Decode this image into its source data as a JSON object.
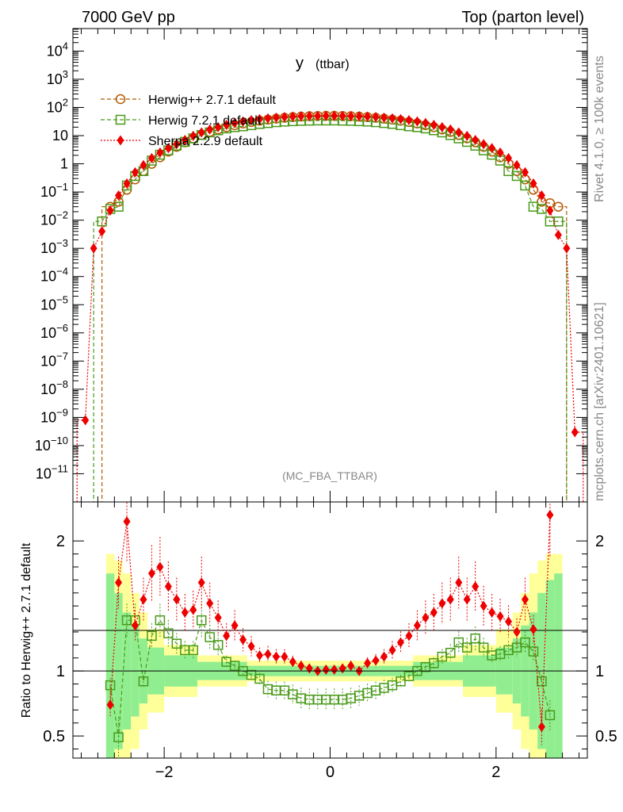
{
  "header": {
    "left": "7000 GeV pp",
    "right": "Top (parton level)"
  },
  "side_text": {
    "rivet": "Rivet 4.1.0, ≥ 100k events",
    "mcplots": "mcplots.cern.ch [arXiv:2401.10621]"
  },
  "colors": {
    "herwigpp": "#b35900",
    "herwig7": "#4a9a1a",
    "sherpa": "#ee0000",
    "band_inner": "#90ee90",
    "band_outer": "#ffff99"
  },
  "chart_data": [
    {
      "type": "line",
      "title_main": "y",
      "title_sub": "(ttbar)",
      "watermark": "(MC_FBA_TTBAR)",
      "yscale": "log",
      "xlim": [
        -3.1,
        3.1
      ],
      "ylim_exp": [
        -12,
        4.8
      ],
      "yticks_exp": [
        -11,
        -10,
        -9,
        -8,
        -7,
        -6,
        -5,
        -4,
        -3,
        -2,
        -1,
        0,
        1,
        2,
        3,
        4
      ],
      "ytick_labels": [
        "10^-11",
        "10^-10",
        "10^-9",
        "10^-8",
        "10^-7",
        "10^-6",
        "10^-5",
        "10^-4",
        "10^-3",
        "10^-2",
        "10^-1",
        "1",
        "10",
        "10^2",
        "10^3",
        "10^4"
      ],
      "legend": {
        "position": "top-left",
        "entries": [
          {
            "label": "Herwig++ 2.7.1 default",
            "series": "herwigpp"
          },
          {
            "label": "Herwig 7.2.1 default",
            "series": "herwig7"
          },
          {
            "label": "Sherpa 2.2.9 default",
            "series": "sherpa"
          }
        ]
      },
      "series": [
        {
          "name": "Herwig++ 2.7.1 default",
          "key": "herwigpp",
          "x": [
            -2.65,
            -2.55,
            -2.45,
            -2.35,
            -2.25,
            -2.15,
            -2.05,
            -1.95,
            -1.85,
            -1.75,
            -1.65,
            -1.55,
            -1.45,
            -1.35,
            -1.25,
            -1.15,
            -1.05,
            -0.95,
            -0.85,
            -0.75,
            -0.65,
            -0.55,
            -0.45,
            -0.35,
            -0.25,
            -0.15,
            -0.05,
            0.05,
            0.15,
            0.25,
            0.35,
            0.45,
            0.55,
            0.65,
            0.75,
            0.85,
            0.95,
            1.05,
            1.15,
            1.25,
            1.35,
            1.45,
            1.55,
            1.65,
            1.75,
            1.85,
            1.95,
            2.05,
            2.15,
            2.25,
            2.35,
            2.45,
            2.55,
            2.65,
            2.75
          ],
          "y": [
            0.03,
            0.045,
            0.12,
            0.28,
            0.55,
            1.0,
            1.7,
            2.7,
            4.0,
            5.8,
            8.0,
            10.5,
            13.5,
            16.5,
            20.0,
            23.5,
            27.0,
            30.5,
            34.0,
            37.0,
            40.0,
            43.0,
            45.5,
            47.5,
            49.0,
            50.0,
            50.5,
            50.5,
            50.0,
            49.0,
            47.5,
            45.5,
            43.0,
            40.0,
            37.0,
            34.0,
            30.5,
            27.0,
            23.5,
            20.0,
            16.5,
            13.5,
            10.5,
            8.0,
            5.8,
            4.0,
            2.7,
            1.7,
            1.0,
            0.55,
            0.28,
            0.12,
            0.045,
            0.04,
            0.03
          ]
        },
        {
          "name": "Herwig 7.2.1 default",
          "key": "herwig7",
          "x": [
            -2.75,
            -2.65,
            -2.55,
            -2.45,
            -2.35,
            -2.25,
            -2.15,
            -2.05,
            -1.95,
            -1.85,
            -1.75,
            -1.65,
            -1.55,
            -1.45,
            -1.35,
            -1.25,
            -1.15,
            -1.05,
            -0.95,
            -0.85,
            -0.75,
            -0.65,
            -0.55,
            -0.45,
            -0.35,
            -0.25,
            -0.15,
            -0.05,
            0.05,
            0.15,
            0.25,
            0.35,
            0.45,
            0.55,
            0.65,
            0.75,
            0.85,
            0.95,
            1.05,
            1.15,
            1.25,
            1.35,
            1.45,
            1.55,
            1.65,
            1.75,
            1.85,
            1.95,
            2.05,
            2.15,
            2.25,
            2.35,
            2.45,
            2.55,
            2.65,
            2.75
          ],
          "y": [
            0.009,
            0.025,
            0.03,
            0.17,
            0.37,
            0.55,
            1.3,
            2.1,
            3.0,
            4.4,
            6.0,
            8.0,
            10.5,
            13.0,
            15.5,
            18.0,
            20.0,
            21.5,
            23.5,
            26.0,
            28.0,
            30.0,
            31.5,
            32.5,
            33.5,
            34.0,
            34.5,
            34.5,
            34.5,
            34.0,
            33.5,
            32.5,
            31.5,
            30.0,
            28.0,
            26.0,
            23.5,
            21.5,
            20.0,
            18.0,
            15.5,
            13.0,
            10.5,
            8.0,
            6.0,
            4.4,
            3.0,
            2.1,
            1.3,
            0.55,
            0.37,
            0.17,
            0.03,
            0.025,
            0.009,
            0.009
          ]
        },
        {
          "name": "Sherpa 2.2.9 default",
          "key": "sherpa",
          "x": [
            -2.95,
            -2.85,
            -2.75,
            -2.65,
            -2.55,
            -2.45,
            -2.35,
            -2.25,
            -2.15,
            -2.05,
            -1.95,
            -1.85,
            -1.75,
            -1.65,
            -1.55,
            -1.45,
            -1.35,
            -1.25,
            -1.15,
            -1.05,
            -0.95,
            -0.85,
            -0.75,
            -0.65,
            -0.55,
            -0.45,
            -0.35,
            -0.25,
            -0.15,
            -0.05,
            0.05,
            0.15,
            0.25,
            0.35,
            0.45,
            0.55,
            0.65,
            0.75,
            0.85,
            0.95,
            1.05,
            1.15,
            1.25,
            1.35,
            1.45,
            1.55,
            1.65,
            1.75,
            1.85,
            1.95,
            2.05,
            2.15,
            2.25,
            2.35,
            2.45,
            2.55,
            2.65,
            2.75,
            2.85,
            2.95
          ],
          "y": [
            8e-10,
            0.001,
            0.004,
            0.022,
            0.075,
            0.2,
            0.5,
            0.9,
            1.6,
            2.5,
            3.6,
            5.0,
            7.0,
            9.8,
            13.0,
            16.5,
            20.0,
            24.0,
            28.0,
            32.0,
            35.5,
            38.5,
            41.0,
            43.5,
            45.5,
            47.5,
            49.0,
            49.5,
            50.0,
            50.5,
            50.5,
            50.0,
            49.5,
            49.0,
            47.5,
            45.5,
            43.5,
            41.0,
            38.5,
            35.5,
            32.0,
            28.0,
            24.0,
            20.0,
            16.5,
            13.0,
            9.8,
            7.0,
            5.0,
            3.6,
            2.5,
            1.6,
            0.9,
            0.5,
            0.2,
            0.075,
            0.022,
            0.003,
            0.001,
            3e-10
          ]
        }
      ]
    },
    {
      "type": "line",
      "ylabel": "Ratio to Herwig++ 2.7.1 default",
      "xlim": [
        -3.1,
        3.1
      ],
      "ylim": [
        0.33,
        2.3
      ],
      "xticks": [
        -2,
        0,
        2
      ],
      "xtick_labels": [
        "−2",
        "0",
        "2"
      ],
      "yticks": [
        0.5,
        1,
        2
      ],
      "ytick_labels": [
        "0.5",
        "1",
        "2"
      ],
      "bands": {
        "x_edges": [
          -2.7,
          -2.6,
          -2.5,
          -2.4,
          -2.3,
          -2.2,
          -2.0,
          -1.6,
          -1.0,
          1.0,
          1.6,
          2.0,
          2.2,
          2.3,
          2.4,
          2.5,
          2.6,
          2.7,
          2.8
        ],
        "inner": [
          0.75,
          0.6,
          0.45,
          0.35,
          0.25,
          0.18,
          0.12,
          0.07,
          0.04,
          0.07,
          0.12,
          0.18,
          0.25,
          0.35,
          0.45,
          0.6,
          0.7,
          0.75
        ],
        "outer": [
          0.9,
          0.85,
          0.75,
          0.6,
          0.45,
          0.32,
          0.2,
          0.12,
          0.08,
          0.12,
          0.2,
          0.32,
          0.45,
          0.6,
          0.75,
          0.85,
          0.9,
          0.9
        ]
      },
      "series": [
        {
          "name": "Herwig 7.2.1 default",
          "key": "herwig7",
          "x": [
            -2.65,
            -2.55,
            -2.45,
            -2.35,
            -2.25,
            -2.15,
            -2.05,
            -1.95,
            -1.85,
            -1.75,
            -1.65,
            -1.55,
            -1.45,
            -1.35,
            -1.25,
            -1.15,
            -1.05,
            -0.95,
            -0.85,
            -0.75,
            -0.65,
            -0.55,
            -0.45,
            -0.35,
            -0.25,
            -0.15,
            -0.05,
            0.05,
            0.15,
            0.25,
            0.35,
            0.45,
            0.55,
            0.65,
            0.75,
            0.85,
            0.95,
            1.05,
            1.15,
            1.25,
            1.35,
            1.45,
            1.55,
            1.65,
            1.75,
            1.85,
            1.95,
            2.05,
            2.15,
            2.25,
            2.35,
            2.45,
            2.55,
            2.65
          ],
          "y": [
            0.89,
            0.49,
            1.39,
            1.39,
            0.92,
            1.27,
            1.39,
            1.29,
            1.21,
            1.16,
            1.16,
            1.39,
            1.26,
            1.2,
            1.07,
            1.04,
            1.0,
            0.97,
            0.94,
            0.86,
            0.85,
            0.85,
            0.82,
            0.79,
            0.78,
            0.78,
            0.78,
            0.78,
            0.78,
            0.79,
            0.81,
            0.83,
            0.85,
            0.87,
            0.89,
            0.92,
            0.96,
            1.0,
            1.03,
            1.06,
            1.11,
            1.14,
            1.22,
            1.18,
            1.25,
            1.18,
            1.12,
            1.13,
            1.16,
            1.18,
            1.22,
            1.15,
            0.92,
            0.66
          ]
        },
        {
          "name": "Sherpa 2.2.9 default",
          "key": "sherpa",
          "x": [
            -2.65,
            -2.55,
            -2.45,
            -2.35,
            -2.25,
            -2.15,
            -2.05,
            -1.95,
            -1.85,
            -1.75,
            -1.65,
            -1.55,
            -1.45,
            -1.35,
            -1.25,
            -1.15,
            -1.05,
            -0.95,
            -0.85,
            -0.75,
            -0.65,
            -0.55,
            -0.45,
            -0.35,
            -0.25,
            -0.15,
            -0.05,
            0.05,
            0.15,
            0.25,
            0.35,
            0.45,
            0.55,
            0.65,
            0.75,
            0.85,
            0.95,
            1.05,
            1.15,
            1.25,
            1.35,
            1.45,
            1.55,
            1.65,
            1.75,
            1.85,
            1.95,
            2.05,
            2.15,
            2.25,
            2.35,
            2.45,
            2.55,
            2.65
          ],
          "y": [
            0.74,
            1.68,
            2.15,
            1.35,
            1.55,
            1.75,
            1.8,
            1.65,
            1.55,
            1.45,
            1.47,
            1.68,
            1.52,
            1.41,
            1.27,
            1.35,
            1.24,
            1.19,
            1.12,
            1.13,
            1.11,
            1.11,
            1.07,
            1.04,
            1.02,
            1.0,
            1.01,
            1.01,
            1.02,
            1.04,
            1.0,
            1.06,
            1.08,
            1.11,
            1.16,
            1.22,
            1.27,
            1.35,
            1.41,
            1.45,
            1.52,
            1.55,
            1.68,
            1.55,
            1.65,
            1.5,
            1.45,
            1.42,
            1.38,
            1.3,
            1.55,
            1.32,
            0.57,
            2.2
          ]
        }
      ]
    }
  ]
}
